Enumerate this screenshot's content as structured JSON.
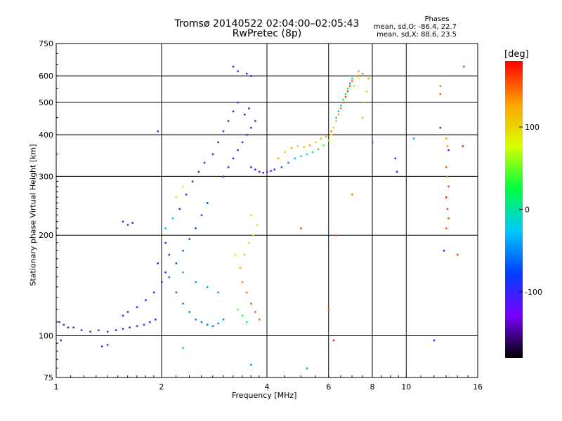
{
  "header": {
    "title_line1": "Tromsø 20140522 02:04:00–02:05:43",
    "title_line2": "RwPretec (8p)",
    "phases_title": "Phases",
    "phases_o": "mean, sd,O: -86.4, 22.7",
    "phases_x": "mean, sd,X:  88.6, 23.5"
  },
  "colorbar": {
    "unit": "[deg]",
    "ticks": [
      100,
      0,
      -100
    ],
    "range": [
      -180,
      180
    ],
    "colors": [
      "#000000",
      "#7a00ff",
      "#0040ff",
      "#00c8ff",
      "#00ff40",
      "#d8ff00",
      "#ffa000",
      "#ff0000"
    ]
  },
  "chart_data": {
    "type": "scatter",
    "xlabel": "Frequency [MHz]",
    "ylabel": "Stationary phase Virtual Height [km]",
    "xscale": "log2",
    "yscale": "log",
    "xlim": [
      1,
      16
    ],
    "ylim": [
      75,
      750
    ],
    "xticks": [
      1,
      2,
      4,
      6,
      8,
      10,
      16
    ],
    "yticks": [
      75,
      100,
      200,
      300,
      400,
      500,
      600,
      750
    ],
    "grid": true,
    "series": [
      {
        "points": [
          [
            1.02,
            110,
            -110
          ],
          [
            1.05,
            108,
            -105
          ],
          [
            1.08,
            106,
            -100
          ],
          [
            1.12,
            106,
            -115
          ],
          [
            1.18,
            104,
            -110
          ],
          [
            1.25,
            103,
            -108
          ],
          [
            1.32,
            104,
            -112
          ],
          [
            1.4,
            103,
            -105
          ],
          [
            1.48,
            104,
            -110
          ],
          [
            1.55,
            105,
            -100
          ],
          [
            1.62,
            106,
            -108
          ],
          [
            1.7,
            107,
            -112
          ],
          [
            1.78,
            108,
            -104
          ],
          [
            1.85,
            110,
            -110
          ],
          [
            1.92,
            112,
            -106
          ],
          [
            1.35,
            93,
            -110
          ],
          [
            1.4,
            94,
            -112
          ],
          [
            1.03,
            97,
            -90
          ],
          [
            1.55,
            115,
            -108
          ],
          [
            1.6,
            118,
            -110
          ],
          [
            1.7,
            122,
            -106
          ],
          [
            1.8,
            128,
            -104
          ],
          [
            1.9,
            135,
            -110
          ],
          [
            2.0,
            145,
            -108
          ],
          [
            2.05,
            155,
            -112
          ],
          [
            1.95,
            165,
            -105
          ],
          [
            2.1,
            175,
            -100
          ],
          [
            2.05,
            190,
            -108
          ],
          [
            2.1,
            150,
            -60
          ],
          [
            2.2,
            135,
            -60
          ],
          [
            2.3,
            125,
            -55
          ],
          [
            2.4,
            118,
            -50
          ],
          [
            2.5,
            112,
            -55
          ],
          [
            2.6,
            110,
            -60
          ],
          [
            2.7,
            108,
            -58
          ],
          [
            2.8,
            107,
            -55
          ],
          [
            2.9,
            109,
            -52
          ],
          [
            3.0,
            112,
            -50
          ],
          [
            2.2,
            165,
            -65
          ],
          [
            2.3,
            180,
            -70
          ],
          [
            2.4,
            195,
            -68
          ],
          [
            2.5,
            210,
            -72
          ],
          [
            2.6,
            230,
            -80
          ],
          [
            2.7,
            250,
            -75
          ],
          [
            2.3,
            155,
            -40
          ],
          [
            2.5,
            145,
            -45
          ],
          [
            2.7,
            140,
            -42
          ],
          [
            2.9,
            135,
            -48
          ],
          [
            2.25,
            240,
            -100
          ],
          [
            2.35,
            265,
            -105
          ],
          [
            2.45,
            290,
            -110
          ],
          [
            2.55,
            310,
            -108
          ],
          [
            2.65,
            330,
            -112
          ],
          [
            2.8,
            350,
            -115
          ],
          [
            2.9,
            380,
            -118
          ],
          [
            3.0,
            410,
            -120
          ],
          [
            3.1,
            440,
            -115
          ],
          [
            3.2,
            470,
            -118
          ],
          [
            3.3,
            500,
            -125
          ],
          [
            2.2,
            260,
            60
          ],
          [
            2.3,
            280,
            80
          ],
          [
            2.05,
            210,
            -30
          ],
          [
            2.15,
            225,
            -20
          ],
          [
            3.0,
            300,
            -110
          ],
          [
            3.1,
            320,
            -112
          ],
          [
            3.2,
            340,
            -115
          ],
          [
            3.3,
            360,
            -108
          ],
          [
            3.4,
            380,
            -110
          ],
          [
            3.5,
            400,
            -112
          ],
          [
            3.6,
            420,
            -105
          ],
          [
            3.7,
            440,
            -110
          ],
          [
            3.45,
            460,
            -120
          ],
          [
            3.55,
            480,
            -118
          ],
          [
            3.2,
            640,
            -120
          ],
          [
            3.3,
            620,
            -115
          ],
          [
            3.5,
            610,
            -118
          ],
          [
            3.6,
            600,
            -110
          ],
          [
            3.4,
            145,
            140
          ],
          [
            3.5,
            135,
            145
          ],
          [
            3.6,
            125,
            150
          ],
          [
            3.7,
            118,
            148
          ],
          [
            3.8,
            112,
            152
          ],
          [
            3.35,
            160,
            120
          ],
          [
            3.45,
            175,
            110
          ],
          [
            3.55,
            190,
            105
          ],
          [
            3.65,
            200,
            100
          ],
          [
            3.75,
            215,
            95
          ],
          [
            3.3,
            120,
            40
          ],
          [
            3.4,
            115,
            30
          ],
          [
            3.5,
            110,
            20
          ],
          [
            3.25,
            175,
            70
          ],
          [
            3.6,
            230,
            60
          ],
          [
            3.6,
            320,
            -110
          ],
          [
            3.7,
            315,
            -108
          ],
          [
            3.8,
            310,
            -112
          ],
          [
            3.9,
            308,
            -105
          ],
          [
            4.0,
            310,
            -110
          ],
          [
            4.1,
            312,
            -100
          ],
          [
            4.2,
            315,
            -90
          ],
          [
            4.4,
            320,
            -70
          ],
          [
            4.6,
            330,
            -50
          ],
          [
            4.8,
            340,
            -30
          ],
          [
            5.0,
            345,
            -20
          ],
          [
            5.2,
            350,
            -10
          ],
          [
            5.4,
            355,
            0
          ],
          [
            5.6,
            362,
            20
          ],
          [
            5.8,
            372,
            40
          ],
          [
            6.0,
            385,
            60
          ],
          [
            6.1,
            400,
            80
          ],
          [
            6.2,
            420,
            100
          ],
          [
            6.3,
            440,
            120
          ],
          [
            6.4,
            460,
            130
          ],
          [
            6.5,
            480,
            140
          ],
          [
            6.6,
            500,
            150
          ],
          [
            6.7,
            520,
            155
          ],
          [
            6.8,
            540,
            160
          ],
          [
            6.9,
            560,
            150
          ],
          [
            7.0,
            580,
            145
          ],
          [
            7.2,
            600,
            140
          ],
          [
            7.3,
            620,
            130
          ],
          [
            7.5,
            610,
            135
          ],
          [
            4.3,
            340,
            120
          ],
          [
            4.5,
            355,
            110
          ],
          [
            4.7,
            365,
            130
          ],
          [
            4.9,
            370,
            105
          ],
          [
            5.1,
            368,
            115
          ],
          [
            5.3,
            372,
            125
          ],
          [
            5.5,
            380,
            110
          ],
          [
            5.7,
            390,
            120
          ],
          [
            5.9,
            395,
            130
          ],
          [
            6.1,
            410,
            140
          ],
          [
            6.3,
            450,
            -30
          ],
          [
            6.4,
            470,
            -20
          ],
          [
            6.5,
            490,
            -10
          ],
          [
            6.6,
            510,
            10
          ],
          [
            6.7,
            530,
            20
          ],
          [
            6.8,
            550,
            30
          ],
          [
            6.9,
            570,
            -40
          ],
          [
            7.0,
            590,
            -20
          ],
          [
            7.1,
            560,
            60
          ],
          [
            7.3,
            590,
            80
          ],
          [
            7.5,
            450,
            120
          ],
          [
            7.6,
            500,
            110
          ],
          [
            7.7,
            540,
            100
          ],
          [
            7.8,
            590,
            130
          ],
          [
            12.5,
            560,
            140
          ],
          [
            12.5,
            530,
            150
          ],
          [
            12.5,
            420,
            -115
          ],
          [
            13.0,
            390,
            120
          ],
          [
            13.1,
            370,
            130
          ],
          [
            13.2,
            360,
            -110
          ],
          [
            13.0,
            320,
            150
          ],
          [
            13.1,
            300,
            140
          ],
          [
            13.2,
            280,
            160
          ],
          [
            13.0,
            260,
            170
          ],
          [
            13.1,
            240,
            165
          ],
          [
            13.2,
            225,
            160
          ],
          [
            13.0,
            210,
            150
          ],
          [
            12.8,
            180,
            -120
          ],
          [
            14.5,
            370,
            170
          ],
          [
            14.6,
            640,
            -60
          ],
          [
            9.3,
            340,
            -110
          ],
          [
            9.4,
            310,
            -105
          ],
          [
            8.0,
            380,
            -60
          ],
          [
            10.5,
            390,
            -40
          ],
          [
            5.0,
            210,
            160
          ],
          [
            6.3,
            200,
            150
          ],
          [
            7.0,
            265,
            140
          ],
          [
            6.0,
            120,
            150
          ],
          [
            6.2,
            97,
            170
          ],
          [
            2.3,
            92,
            -30
          ],
          [
            3.6,
            82,
            -50
          ],
          [
            5.2,
            80,
            -40
          ],
          [
            12.0,
            97,
            -110
          ],
          [
            14.0,
            175,
            160
          ],
          [
            1.55,
            220,
            -100
          ],
          [
            1.6,
            215,
            -105
          ],
          [
            1.65,
            218,
            -110
          ],
          [
            1.95,
            410,
            -120
          ]
        ]
      }
    ]
  }
}
